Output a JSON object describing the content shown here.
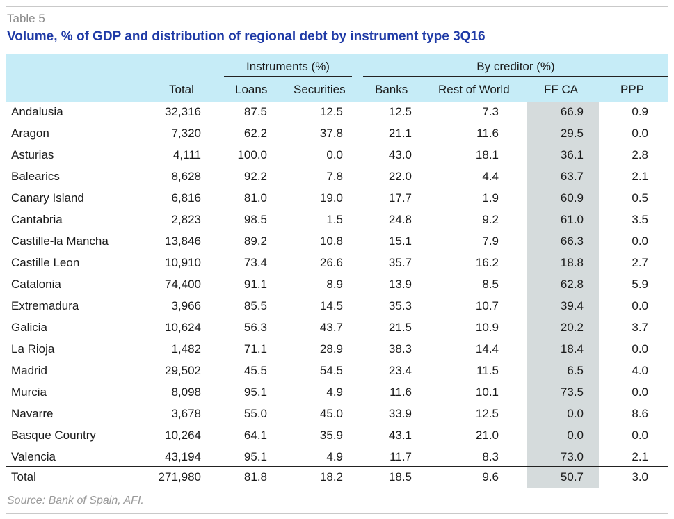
{
  "label": "Table 5",
  "title": "Volume, % of GDP and distribution of regional debt by instrument type 3Q16",
  "groups": {
    "instruments": "Instruments (%)",
    "creditor": "By creditor (%)"
  },
  "columns": [
    "",
    "Total",
    "Loans",
    "Securities",
    "Banks",
    "Rest of World",
    "FF CA",
    "PPP"
  ],
  "rows": [
    [
      "Andalusia",
      "32,316",
      "87.5",
      "12.5",
      "12.5",
      "7.3",
      "66.9",
      "0.9"
    ],
    [
      "Aragon",
      "7,320",
      "62.2",
      "37.8",
      "21.1",
      "11.6",
      "29.5",
      "0.0"
    ],
    [
      "Asturias",
      "4,111",
      "100.0",
      "0.0",
      "43.0",
      "18.1",
      "36.1",
      "2.8"
    ],
    [
      "Balearics",
      "8,628",
      "92.2",
      "7.8",
      "22.0",
      "4.4",
      "63.7",
      "2.1"
    ],
    [
      "Canary Island",
      "6,816",
      "81.0",
      "19.0",
      "17.7",
      "1.9",
      "60.9",
      "0.5"
    ],
    [
      "Cantabria",
      "2,823",
      "98.5",
      "1.5",
      "24.8",
      "9.2",
      "61.0",
      "3.5"
    ],
    [
      "Castille-la Mancha",
      "13,846",
      "89.2",
      "10.8",
      "15.1",
      "7.9",
      "66.3",
      "0.0"
    ],
    [
      "Castille Leon",
      "10,910",
      "73.4",
      "26.6",
      "35.7",
      "16.2",
      "18.8",
      "2.7"
    ],
    [
      "Catalonia",
      "74,400",
      "91.1",
      "8.9",
      "13.9",
      "8.5",
      "62.8",
      "5.9"
    ],
    [
      "Extremadura",
      "3,966",
      "85.5",
      "14.5",
      "35.3",
      "10.7",
      "39.4",
      "0.0"
    ],
    [
      "Galicia",
      "10,624",
      "56.3",
      "43.7",
      "21.5",
      "10.9",
      "20.2",
      "3.7"
    ],
    [
      "La Rioja",
      "1,482",
      "71.1",
      "28.9",
      "38.3",
      "14.4",
      "18.4",
      "0.0"
    ],
    [
      "Madrid",
      "29,502",
      "45.5",
      "54.5",
      "23.4",
      "11.5",
      "6.5",
      "4.0"
    ],
    [
      "Murcia",
      "8,098",
      "95.1",
      "4.9",
      "11.6",
      "10.1",
      "73.5",
      "0.0"
    ],
    [
      "Navarre",
      "3,678",
      "55.0",
      "45.0",
      "33.9",
      "12.5",
      "0.0",
      "8.6"
    ],
    [
      "Basque Country",
      "10,264",
      "64.1",
      "35.9",
      "43.1",
      "21.0",
      "0.0",
      "0.0"
    ],
    [
      "Valencia",
      "43,194",
      "95.1",
      "4.9",
      "11.7",
      "8.3",
      "73.0",
      "2.1"
    ]
  ],
  "total": [
    "Total",
    "271,980",
    "81.8",
    "18.2",
    "18.5",
    "9.6",
    "50.7",
    "3.0"
  ],
  "source": "Source: Bank of Spain, AFI.",
  "colors": {
    "title": "#1f3aa6",
    "header_bg": "#c6ecf7",
    "highlight": "#d5dbdc"
  }
}
